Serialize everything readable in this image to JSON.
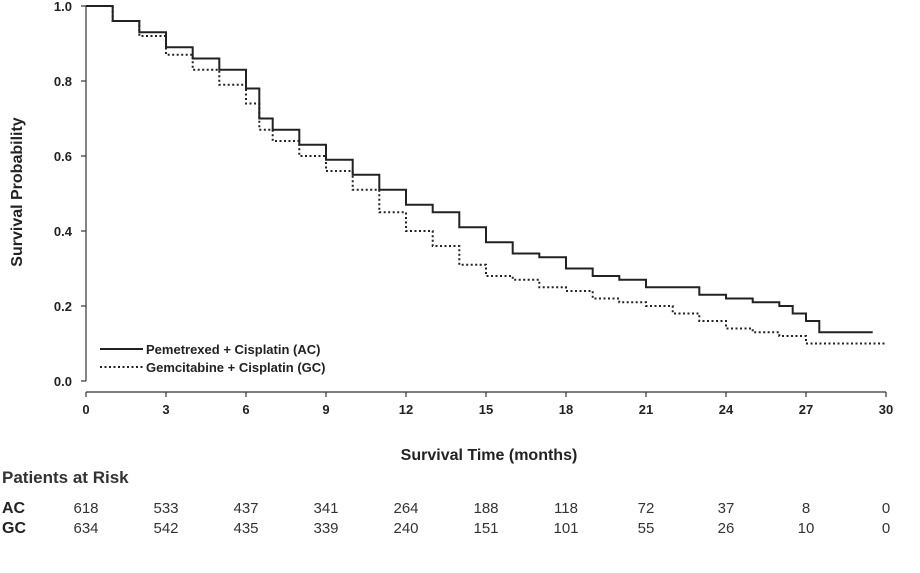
{
  "chart_data": {
    "type": "line",
    "subtype": "kaplan-meier",
    "xlabel": "Survival Time (months)",
    "ylabel": "Survival Probability",
    "xlim": [
      0,
      30
    ],
    "ylim": [
      0,
      1.0
    ],
    "x_ticks": [
      0,
      3,
      6,
      9,
      12,
      15,
      18,
      21,
      24,
      27,
      30
    ],
    "y_ticks": [
      0.0,
      0.2,
      0.4,
      0.6,
      0.8,
      1.0
    ],
    "y_tick_labels": [
      "0.0",
      "0.2",
      "0.4",
      "0.6",
      "0.8",
      "1.0"
    ],
    "legend_position": "bottom-left",
    "series": [
      {
        "name": "Pemetrexed + Cisplatin (AC)",
        "style": "solid",
        "x": [
          0,
          1,
          2,
          3,
          4,
          5,
          6,
          6.5,
          7,
          8,
          9,
          10,
          11,
          12,
          13,
          14,
          15,
          16,
          17,
          18,
          19,
          20,
          21,
          22,
          23,
          24,
          25,
          26,
          26.5,
          27,
          27.5,
          28,
          29,
          29.5
        ],
        "y": [
          1.0,
          0.96,
          0.93,
          0.89,
          0.86,
          0.83,
          0.78,
          0.7,
          0.67,
          0.63,
          0.59,
          0.55,
          0.51,
          0.47,
          0.45,
          0.41,
          0.37,
          0.34,
          0.33,
          0.3,
          0.28,
          0.27,
          0.25,
          0.25,
          0.23,
          0.22,
          0.21,
          0.2,
          0.18,
          0.16,
          0.13,
          0.13,
          0.13,
          0.13
        ]
      },
      {
        "name": "Gemcitabine + Cisplatin (GC)",
        "style": "dotted",
        "x": [
          0,
          1,
          2,
          3,
          4,
          5,
          6,
          6.5,
          7,
          8,
          9,
          10,
          11,
          12,
          13,
          14,
          15,
          16,
          17,
          18,
          19,
          20,
          21,
          22,
          23,
          24,
          25,
          26,
          27,
          28,
          29,
          30
        ],
        "y": [
          1.0,
          0.96,
          0.92,
          0.87,
          0.83,
          0.79,
          0.74,
          0.67,
          0.64,
          0.6,
          0.56,
          0.51,
          0.45,
          0.4,
          0.36,
          0.31,
          0.28,
          0.27,
          0.25,
          0.24,
          0.22,
          0.21,
          0.2,
          0.18,
          0.16,
          0.14,
          0.13,
          0.12,
          0.1,
          0.1,
          0.1,
          0.1
        ]
      }
    ]
  },
  "risk_table": {
    "title": "Patients at Risk",
    "timepoints": [
      0,
      3,
      6,
      9,
      12,
      15,
      18,
      21,
      24,
      27,
      30
    ],
    "rows": [
      {
        "label": "AC",
        "values": [
          "618",
          "533",
          "437",
          "341",
          "264",
          "188",
          "118",
          "72",
          "37",
          "8",
          "0"
        ]
      },
      {
        "label": "GC",
        "values": [
          "634",
          "542",
          "435",
          "339",
          "240",
          "151",
          "101",
          "55",
          "26",
          "10",
          "0"
        ]
      }
    ]
  }
}
